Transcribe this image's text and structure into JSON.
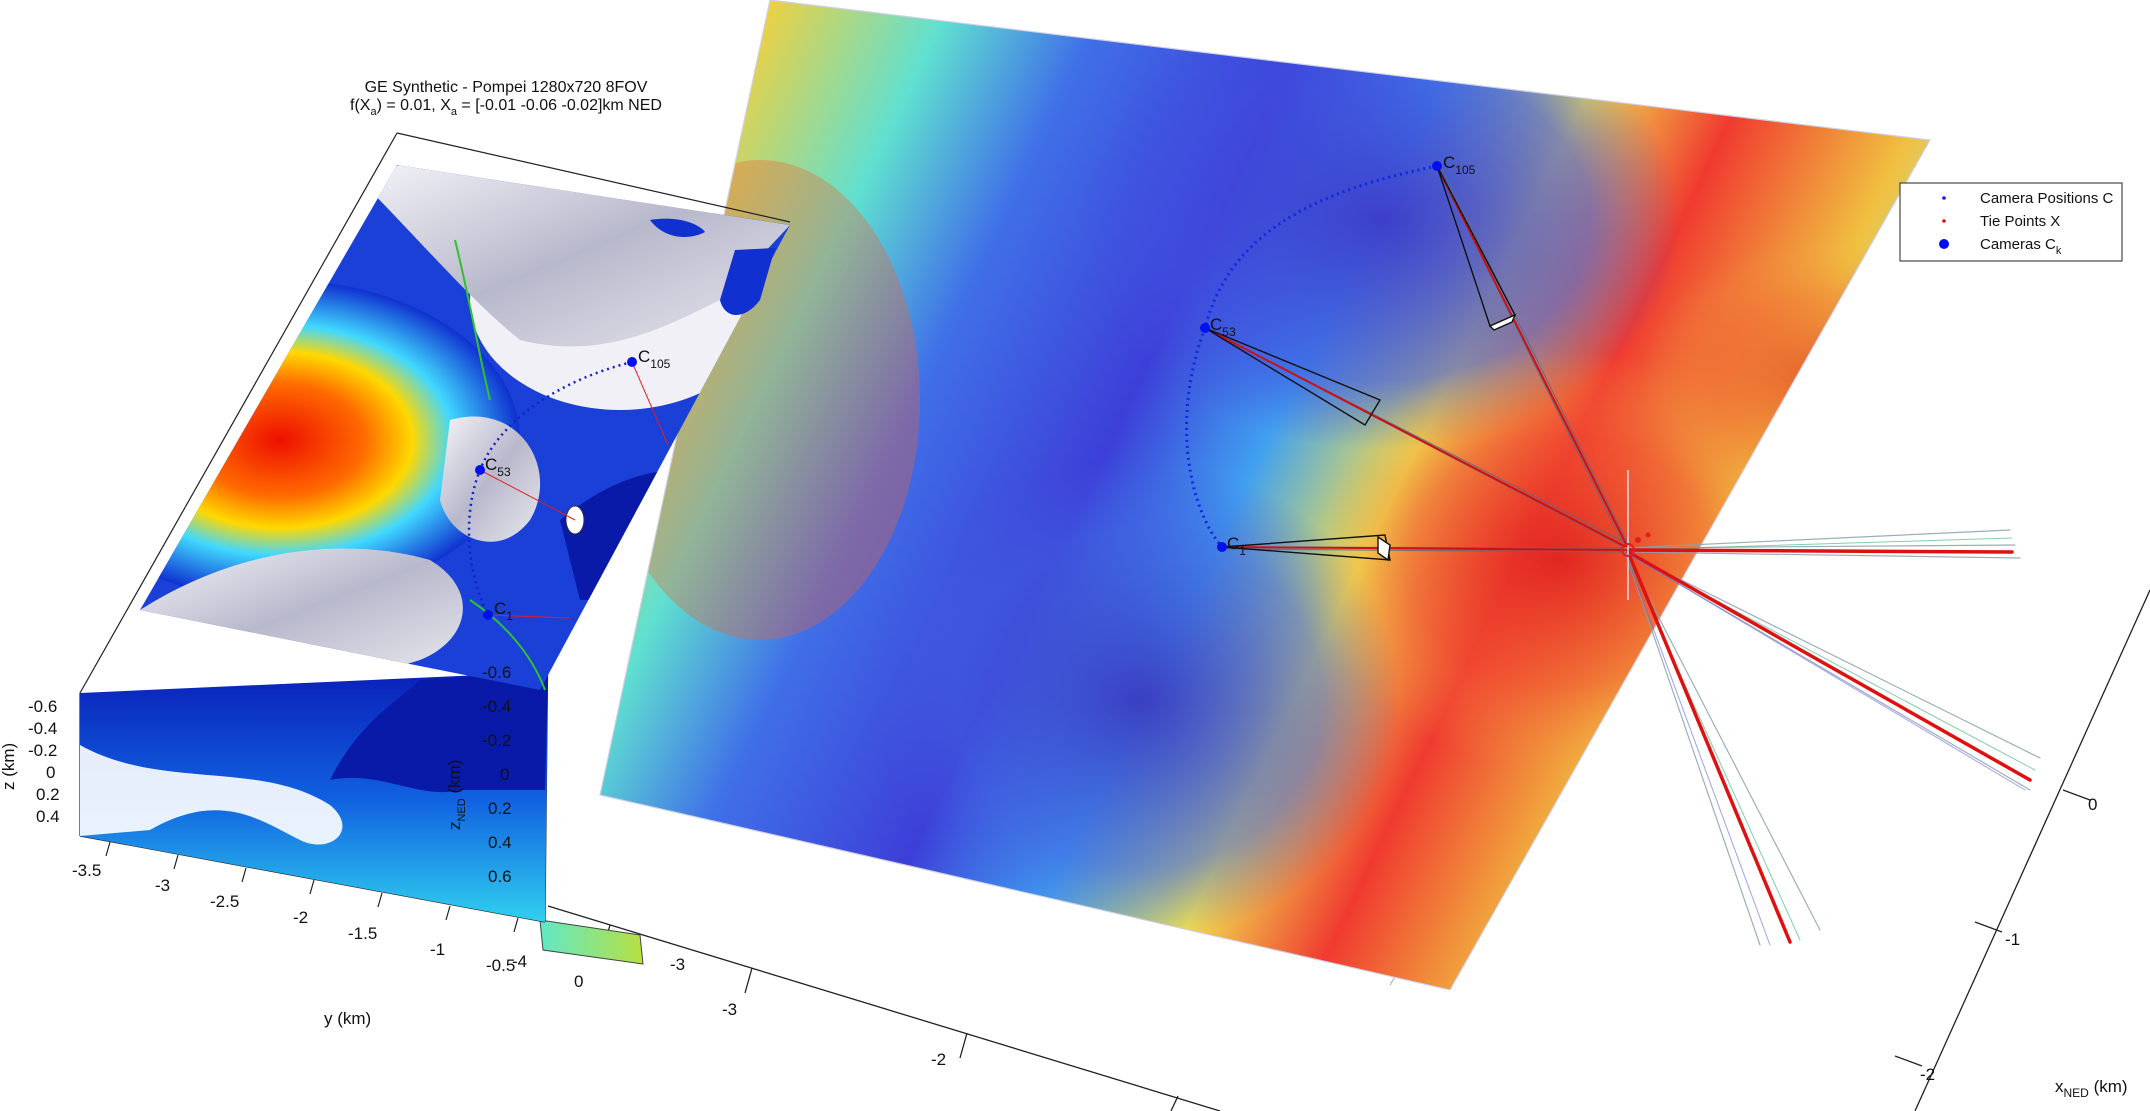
{
  "chart_data": [
    {
      "type": "surface-3d",
      "title": "GE Synthetic - Pompei 1280x720 8FOV",
      "subtitle": "f(X_a) = 0.01, X_a = [-0.01 -0.06 -0.02]km NED",
      "xlabel": "y (km)",
      "ylabel": "z (km)",
      "y_ticks": [
        "-3.5",
        "-3",
        "-2.5",
        "-2",
        "-1.5",
        "-1",
        "-0.5"
      ],
      "z_ticks": [
        "-0.6",
        "-0.4",
        "-0.2",
        "0",
        "0.2",
        "0.4"
      ],
      "inner_zlabel": "z_NED (km)",
      "inner_z_ticks": [
        "-0.6",
        "-0.4",
        "-0.2",
        "0",
        "0.2",
        "0.4",
        "0.6"
      ],
      "camera_labels": [
        {
          "name": "C",
          "sub": "105"
        },
        {
          "name": "C",
          "sub": "53"
        },
        {
          "name": "C",
          "sub": "1"
        }
      ]
    },
    {
      "type": "surface-3d",
      "xlabel": "x_NED (km)",
      "x_ticks": [
        "0",
        "-1",
        "-2"
      ],
      "y_ticks": [
        "-4",
        "-3",
        "-2"
      ],
      "extra_ticks": [
        "0",
        "-3"
      ],
      "camera_labels": [
        {
          "name": "C",
          "sub": "105"
        },
        {
          "name": "C",
          "sub": "53"
        },
        {
          "name": "C",
          "sub": "1"
        }
      ],
      "legend": {
        "placement": "top-right",
        "entries": [
          {
            "label": "Camera Positions C",
            "marker": "small-dot",
            "color": "#1020e0"
          },
          {
            "label": "Tie Points X",
            "marker": "small-dot",
            "color": "#e01010"
          },
          {
            "label": "Cameras C",
            "sub": "k",
            "marker": "large-dot",
            "color": "#0010ee"
          }
        ]
      }
    }
  ]
}
